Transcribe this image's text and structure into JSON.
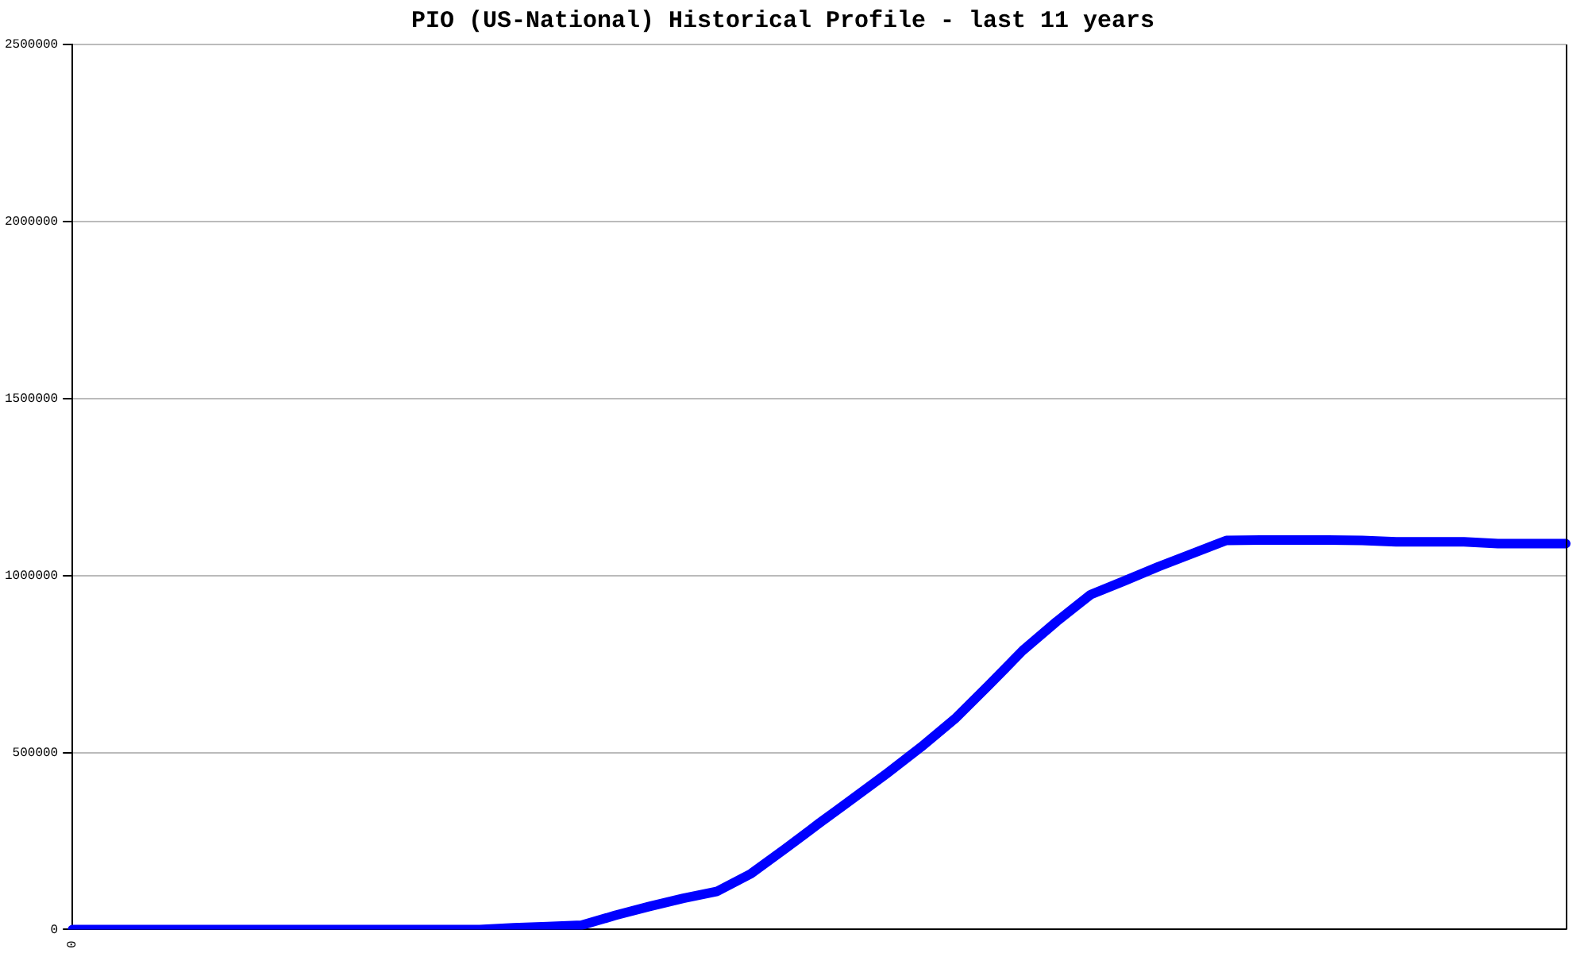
{
  "chart_data": {
    "type": "line",
    "title": "PIO (US-National) Historical Profile - last 11 years",
    "categories": [
      "0",
      null,
      null,
      null,
      null,
      null,
      null,
      null,
      null,
      null,
      null,
      null,
      null,
      null,
      null,
      null,
      null,
      null,
      null,
      null,
      null,
      null,
      null,
      null,
      null,
      null,
      null,
      null,
      null,
      null,
      null,
      null,
      null,
      null,
      null,
      null,
      null,
      null,
      null,
      null,
      null,
      null,
      null,
      null,
      null
    ],
    "series": [
      {
        "color": "#0000ff",
        "values": [
          0,
          0,
          0,
          0,
          0,
          0,
          0,
          0,
          0,
          0,
          0,
          0,
          0,
          5000,
          8000,
          12000,
          40000,
          65000,
          88000,
          108000,
          158000,
          228000,
          300000,
          370000,
          441000,
          515000,
          595000,
          690000,
          788000,
          870000,
          946000,
          985000,
          1025000,
          1062000,
          1099000,
          1100000,
          1100000,
          1100000,
          1099000,
          1095000,
          1095000,
          1095000,
          1090000,
          1090000,
          1090000
        ]
      }
    ],
    "ylim": [
      0,
      2500000
    ],
    "yticks": [
      0,
      500000,
      1000000,
      1500000,
      2000000,
      2500000
    ],
    "grid": "y",
    "legend": false,
    "marker": "none",
    "line_style": "solid"
  }
}
